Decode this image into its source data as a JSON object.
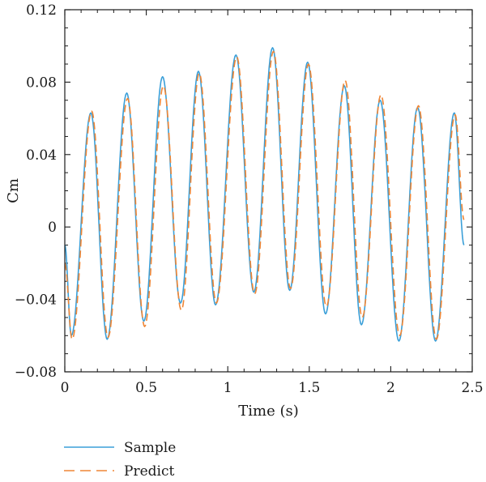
{
  "chart_data": {
    "type": "line",
    "xlabel": "Time (s)",
    "ylabel": "Cm",
    "xlim": [
      0,
      2.5
    ],
    "ylim": [
      -0.08,
      0.12
    ],
    "xticks": [
      0,
      0.5,
      1,
      1.5,
      2,
      2.5
    ],
    "xtick_labels": [
      "0",
      "0.5",
      "1",
      "1.5",
      "2",
      "2.5"
    ],
    "yticks": [
      -0.08,
      -0.04,
      0,
      0.04,
      0.08,
      0.12
    ],
    "ytick_labels": [
      "−0.08",
      "−0.04",
      "0",
      "0.04",
      "0.08",
      "0.12"
    ],
    "grid": false,
    "legend_position": "bottom-left, below plot",
    "series": [
      {
        "name": "Sample",
        "color": "#3a9fd8",
        "style": "solid",
        "x": [
          0.0,
          0.04,
          0.16,
          0.26,
          0.38,
          0.485,
          0.6,
          0.71,
          0.82,
          0.925,
          1.05,
          1.16,
          1.275,
          1.38,
          1.49,
          1.6,
          1.715,
          1.82,
          1.935,
          2.05,
          2.165,
          2.275,
          2.39,
          2.45
        ],
        "y": [
          -0.01,
          -0.06,
          0.063,
          -0.062,
          0.074,
          -0.052,
          0.083,
          -0.042,
          0.086,
          -0.043,
          0.095,
          -0.036,
          0.099,
          -0.035,
          0.091,
          -0.048,
          0.078,
          -0.054,
          0.07,
          -0.063,
          0.066,
          -0.063,
          0.063,
          -0.01
        ]
      },
      {
        "name": "Predict",
        "color": "#ef8636",
        "style": "dashed",
        "x": [
          0.0,
          0.045,
          0.165,
          0.265,
          0.385,
          0.49,
          0.605,
          0.715,
          0.825,
          0.93,
          1.055,
          1.165,
          1.28,
          1.385,
          1.495,
          1.605,
          1.72,
          1.825,
          1.94,
          2.055,
          2.17,
          2.28,
          2.395,
          2.45
        ],
        "y": [
          -0.02,
          -0.062,
          0.064,
          -0.061,
          0.071,
          -0.055,
          0.078,
          -0.046,
          0.085,
          -0.042,
          0.094,
          -0.037,
          0.097,
          -0.034,
          0.09,
          -0.044,
          0.081,
          -0.05,
          0.073,
          -0.06,
          0.067,
          -0.062,
          0.062,
          0.004
        ]
      }
    ]
  }
}
